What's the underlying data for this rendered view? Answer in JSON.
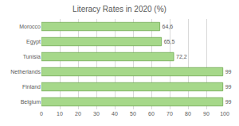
{
  "chart_data": {
    "type": "bar",
    "title": "Literacy Rates in 2020 (%)",
    "orientation": "horizontal",
    "categories": [
      "Belgium",
      "Finland",
      "Netherlands",
      "Tunisia",
      "Egypt",
      "Morocco"
    ],
    "values": [
      99,
      99,
      99,
      72.2,
      65.5,
      64.6
    ],
    "value_labels": [
      "99",
      "99",
      "99",
      "72,2",
      "65,5",
      "64,6"
    ],
    "data_labels": true,
    "color": "#a6d88a",
    "xlim": [
      0,
      100
    ],
    "xticks": [
      0,
      10,
      20,
      30,
      40,
      50,
      60,
      70,
      80,
      90,
      100
    ],
    "grid": true
  }
}
